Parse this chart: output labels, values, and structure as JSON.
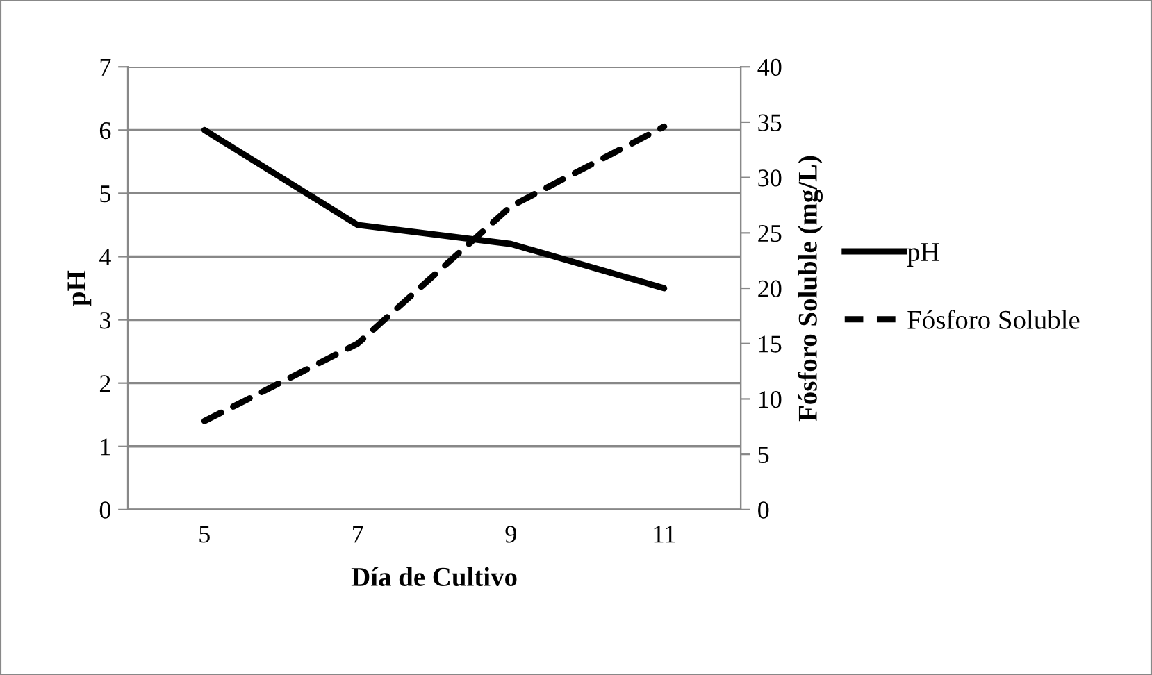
{
  "chart_data": {
    "type": "line",
    "xlabel": "Día de Cultivo",
    "ylabel": "pH",
    "y2label": "Fósforo Soluble (mg/L)",
    "categories": [
      "5",
      "7",
      "9",
      "11"
    ],
    "series": [
      {
        "name": "pH",
        "color": "#000000",
        "values": [
          6.0,
          4.5,
          4.2,
          3.5
        ],
        "line_style": "solid"
      },
      {
        "name": "Fósforo Soluble",
        "color": "#000000",
        "values": [
          8,
          15,
          27.4,
          34.6
        ],
        "axis": "y2",
        "line_style": "dashed"
      }
    ],
    "ylim": [
      0,
      7
    ],
    "yticks": [
      0,
      1,
      2,
      3,
      4,
      5,
      6,
      7
    ],
    "y2lim": [
      0,
      40
    ],
    "y2ticks": [
      0,
      5,
      10,
      15,
      20,
      25,
      30,
      35,
      40
    ],
    "grid": "y",
    "legend": "right",
    "marker": "none"
  }
}
